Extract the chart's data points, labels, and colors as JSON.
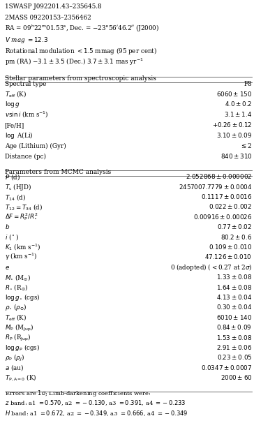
{
  "header_lines": [
    "1SWASP J092201.43–235645.8",
    "2MASS 09220153–2356462",
    "RA = 09$^{\\rm h}$22$^{\\rm m}$01.53$^{\\rm s}$, Dec. = $-$23°56$'$46.2$''$ (J2000)",
    "$V$ mag $= 12.3$",
    "Rotational modulation $< 1.5$ mmag (95 per cent)",
    "pm (RA) $-3.1 \\pm 3.5$ (Dec.) $3.7 \\pm 3.1$ mas yr$^{-1}$"
  ],
  "section1_title": "Stellar parameters from spectroscopic analysis",
  "section1_rows": [
    [
      "Spectral type",
      "F8"
    ],
    [
      "$T_{\\rm eff}$ (K)",
      "$6060 \\pm 150$"
    ],
    [
      "$\\log g$",
      "$4.0 \\pm 0.2$"
    ],
    [
      "$v \\sin i$ (km s$^{-1}$)",
      "$3.1 \\pm 1.4$"
    ],
    [
      "[Fe/H]",
      "$+0.26 \\pm 0.12$"
    ],
    [
      "$\\log$ A(Li)",
      "$3.10 \\pm 0.09$"
    ],
    [
      "Age (Lithium) (Gyr)",
      "$\\lesssim$2"
    ],
    [
      "Distance (pc)",
      "$840 \\pm 310$"
    ]
  ],
  "section2_title": "Parameters from MCMC analysis",
  "section2_rows": [
    [
      "$P$ (d)",
      "$2.052868 \\pm 0.000002$"
    ],
    [
      "$T_{\\rm c}$ (HJD)",
      "$2457007.7779 \\pm 0.0004$"
    ],
    [
      "$T_{14}$ (d)",
      "$0.1117 \\pm 0.0016$"
    ],
    [
      "$T_{12} = T_{34}$ (d)",
      "$0.022 \\pm 0.002$"
    ],
    [
      "$\\Delta F = R_{\\rm P}^2/R_{\\star}^2$",
      "$0.00916 \\pm 0.00026$"
    ],
    [
      "$b$",
      "$0.77 \\pm 0.02$"
    ],
    [
      "$i$ ($^\\circ$)",
      "$80.2 \\pm 0.6$"
    ],
    [
      "$K_1$ (km s$^{-1}$)",
      "$0.109 \\pm 0.010$"
    ],
    [
      "$\\gamma$ (km s$^{-1}$)",
      "$47.126 \\pm 0.010$"
    ],
    [
      "$e$",
      "0 (adopted) ($<$0.27 at 2$\\sigma$)"
    ],
    [
      "$M_{\\star}$ (M$_{\\odot}$)",
      "$1.33 \\pm 0.08$"
    ],
    [
      "$R_{\\star}$ (R$_{\\odot}$)",
      "$1.64 \\pm 0.08$"
    ],
    [
      "$\\log g_{\\star}$ (cgs)",
      "$4.13 \\pm 0.04$"
    ],
    [
      "$\\rho_{\\star}$ ($\\rho_{\\odot}$)",
      "$0.30 \\pm 0.04$"
    ],
    [
      "$T_{\\rm eff}$ (K)",
      "$6010 \\pm 140$"
    ],
    [
      "$M_{\\rm P}$ (M$_{\\rm Jup}$)",
      "$0.84 \\pm 0.09$"
    ],
    [
      "$R_{\\rm P}$ (R$_{\\rm Jup}$)",
      "$1.53 \\pm 0.08$"
    ],
    [
      "$\\log g_{\\rm P}$ (cgs)",
      "$2.91 \\pm 0.06$"
    ],
    [
      "$\\rho_{\\rm P}$ ($\\rho_J$)",
      "$0.23 \\pm 0.05$"
    ],
    [
      "$a$ (au)",
      "$0.0347 \\pm 0.0007$"
    ],
    [
      "$T_{\\rm P, A=0}$ (K)",
      "$2000 \\pm 60$"
    ]
  ],
  "footer_lines": [
    "Errors are $1\\sigma$; Limb-darkening coefficients were:",
    "$z$ band: a1 $= 0.570$, a2 $= -0.130$, a3 $= 0.391$, a4 $= -0.233$",
    "$H$ band: a1 $= 0.672$, a2 $= -0.349$, a3 $= 0.666$, a4 $= -0.349$"
  ],
  "bg_color": "#ffffff",
  "text_color": "#000000",
  "line_color": "#555555",
  "font_size": 6.3,
  "section_title_font_size": 6.5,
  "footer_font_size": 6.0
}
